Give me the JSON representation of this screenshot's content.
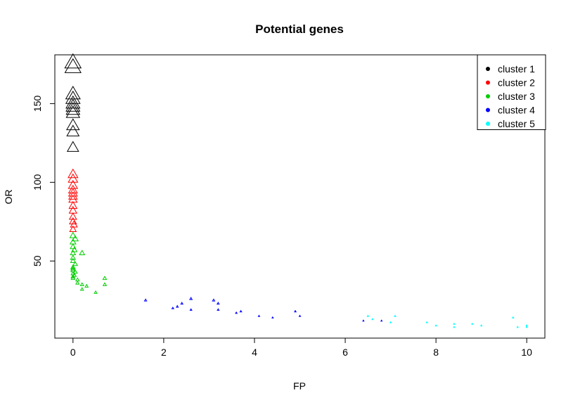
{
  "chart_data": {
    "type": "scatter",
    "title": "Potential genes",
    "xlabel": "FP",
    "ylabel": "OR",
    "xlim": [
      -0.4,
      10.4
    ],
    "ylim": [
      1,
      181
    ],
    "x_ticks": [
      0,
      2,
      4,
      6,
      8,
      10
    ],
    "x_tick_labels": [
      "0",
      "2",
      "4",
      "6",
      "8",
      "10"
    ],
    "y_ticks": [
      50,
      100,
      150
    ],
    "y_tick_labels": [
      "50",
      "100",
      "150"
    ],
    "grid": false,
    "legend_position": "top-right",
    "marker": "triangle",
    "series": [
      {
        "name": "cluster 1",
        "color": "#000000",
        "points": [
          [
            0,
            176
          ],
          [
            0,
            173
          ],
          [
            0,
            156
          ],
          [
            0,
            153
          ],
          [
            0,
            150
          ],
          [
            0,
            148
          ],
          [
            0,
            146
          ],
          [
            0,
            144
          ],
          [
            0,
            136
          ],
          [
            0,
            132
          ],
          [
            0,
            122
          ]
        ]
      },
      {
        "name": "cluster 2",
        "color": "#ff0000",
        "points": [
          [
            0,
            105
          ],
          [
            0,
            102
          ],
          [
            0,
            98
          ],
          [
            0,
            95
          ],
          [
            0,
            93
          ],
          [
            0,
            91
          ],
          [
            0,
            89
          ],
          [
            0,
            85
          ],
          [
            0,
            82
          ],
          [
            0,
            78
          ],
          [
            0,
            75
          ],
          [
            0.02,
            73
          ],
          [
            0,
            70
          ]
        ]
      },
      {
        "name": "cluster 3",
        "color": "#00cd00",
        "points": [
          [
            0,
            66
          ],
          [
            0.05,
            64
          ],
          [
            0,
            62
          ],
          [
            0,
            59
          ],
          [
            0.03,
            57
          ],
          [
            0,
            55
          ],
          [
            0.2,
            55
          ],
          [
            0,
            52
          ],
          [
            0,
            50
          ],
          [
            0.05,
            48
          ],
          [
            0,
            46
          ],
          [
            0,
            45
          ],
          [
            0,
            44
          ],
          [
            0.05,
            43
          ],
          [
            0,
            42
          ],
          [
            0.03,
            41
          ],
          [
            0,
            40
          ],
          [
            0,
            39
          ],
          [
            0.1,
            38
          ],
          [
            0.1,
            36
          ],
          [
            0.2,
            35
          ],
          [
            0.3,
            34
          ],
          [
            0.2,
            32
          ],
          [
            0.5,
            30
          ],
          [
            0.7,
            39
          ],
          [
            0.7,
            35
          ]
        ]
      },
      {
        "name": "cluster 4",
        "color": "#0000ff",
        "points": [
          [
            1.6,
            25
          ],
          [
            2.2,
            20
          ],
          [
            2.3,
            21
          ],
          [
            2.4,
            23
          ],
          [
            2.6,
            26
          ],
          [
            2.6,
            19
          ],
          [
            3.1,
            25
          ],
          [
            3.2,
            23
          ],
          [
            3.2,
            19
          ],
          [
            3.6,
            17
          ],
          [
            3.7,
            18
          ],
          [
            4.1,
            15
          ],
          [
            4.4,
            14
          ],
          [
            4.9,
            18
          ],
          [
            5.0,
            15
          ],
          [
            6.4,
            12
          ],
          [
            6.8,
            12
          ]
        ]
      },
      {
        "name": "cluster 5",
        "color": "#00ffff",
        "points": [
          [
            6.5,
            15
          ],
          [
            6.6,
            13
          ],
          [
            7.0,
            11
          ],
          [
            7.1,
            15
          ],
          [
            7.8,
            11
          ],
          [
            8.0,
            9
          ],
          [
            8.4,
            10
          ],
          [
            8.4,
            8
          ],
          [
            8.8,
            10
          ],
          [
            9.0,
            9
          ],
          [
            9.7,
            14
          ],
          [
            9.8,
            8
          ],
          [
            10.0,
            9
          ],
          [
            10.0,
            8
          ]
        ]
      }
    ]
  }
}
